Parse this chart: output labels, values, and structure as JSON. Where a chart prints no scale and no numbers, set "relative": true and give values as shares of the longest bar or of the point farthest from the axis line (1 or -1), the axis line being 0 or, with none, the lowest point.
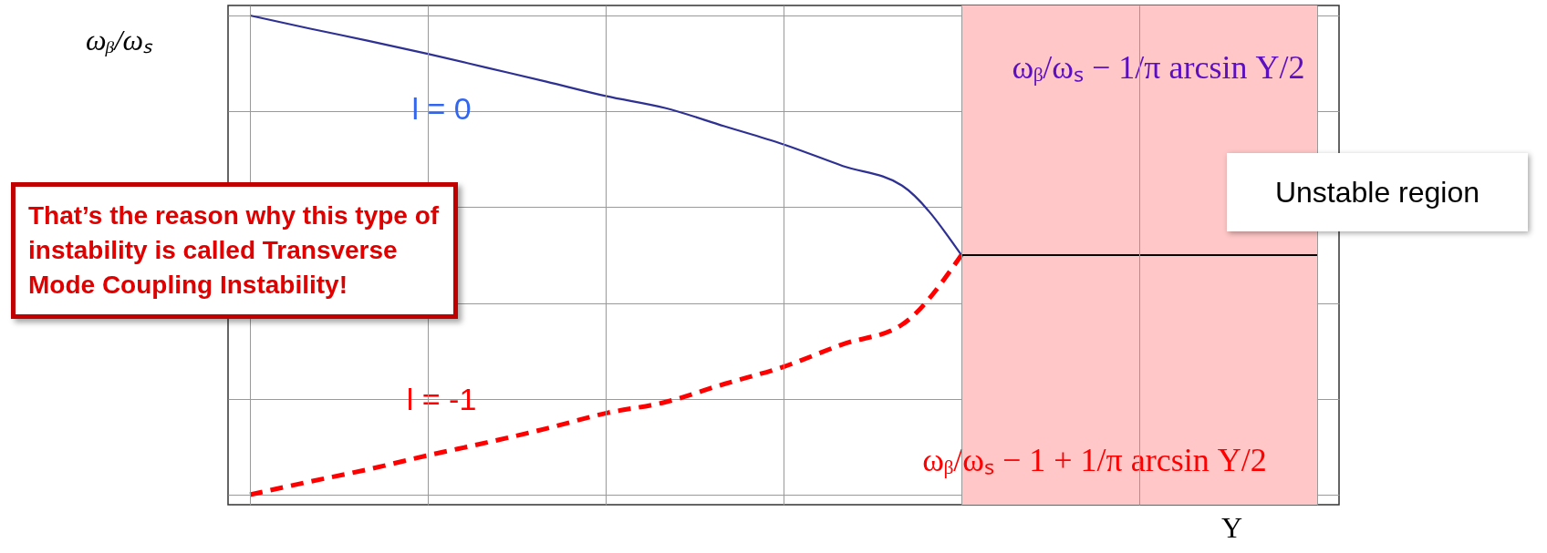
{
  "chart_data": {
    "type": "line",
    "relative": true,
    "ylabel": "ωᵦ/ωₛ",
    "xlabel": "Υ",
    "categories": [
      null,
      null,
      null,
      null,
      null,
      null,
      null,
      null,
      null,
      null,
      null,
      null,
      null,
      null,
      null,
      null,
      null,
      null,
      null
    ],
    "series": [
      {
        "name": "l = 0",
        "color": "#2e3192",
        "line_style": "solid",
        "values": [
          1.0,
          0.973,
          0.947,
          0.92,
          0.891,
          0.862,
          0.832,
          0.807,
          0.769,
          0.731,
          0.686,
          0.645,
          0.5,
          null,
          null,
          null,
          null,
          null,
          null
        ]
      },
      {
        "name": "l = -1",
        "color": "#ff0000",
        "line_style": "dashed",
        "values": [
          0.0,
          0.027,
          0.053,
          0.082,
          0.109,
          0.138,
          0.17,
          0.193,
          0.231,
          0.267,
          0.314,
          0.355,
          0.5,
          null,
          null,
          null,
          null,
          null,
          null
        ]
      },
      {
        "color": "#000000",
        "line_style": "solid",
        "values": [
          null,
          null,
          null,
          null,
          null,
          null,
          null,
          null,
          null,
          null,
          null,
          null,
          0.5,
          0.5,
          0.5,
          0.5,
          0.5,
          0.5,
          0.5
        ]
      }
    ],
    "annotations": [
      "That’s the reason why this type of instability is called Transverse Mode Coupling Instability!",
      "ωᵦ/ωₛ − 1/π arcsin Υ/2",
      "ωᵦ/ωₛ − 1 + 1/π arcsin Υ/2",
      "Unstable region"
    ],
    "grid": true
  }
}
